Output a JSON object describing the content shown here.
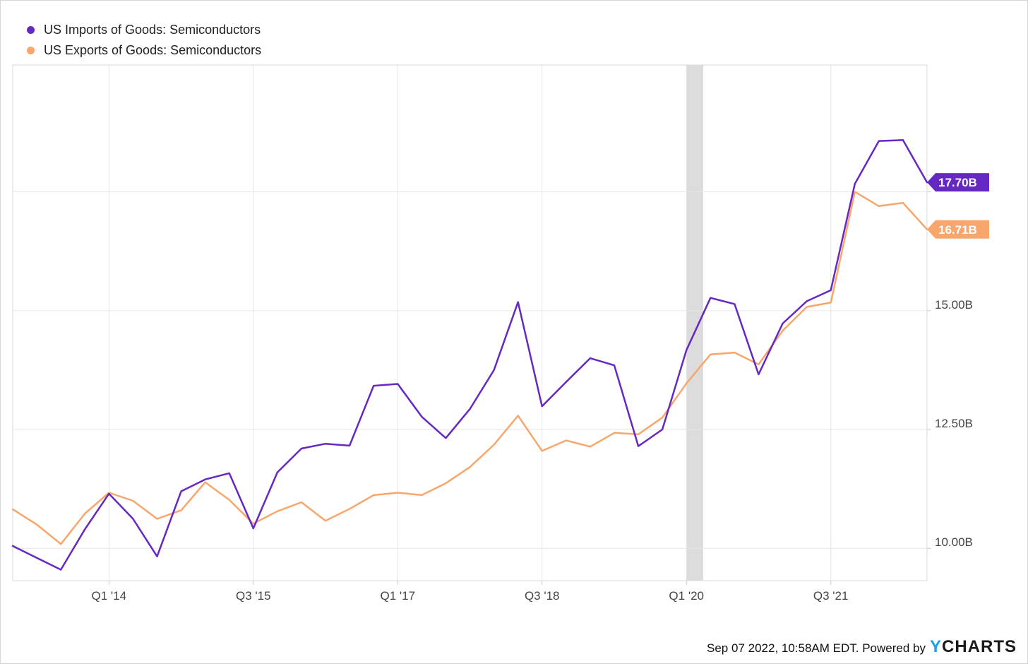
{
  "legend": {
    "items": [
      {
        "label": "US Imports of Goods: Semiconductors",
        "color": "#6528c2"
      },
      {
        "label": "US Exports of Goods: Semiconductors",
        "color": "#f8a66b"
      }
    ]
  },
  "footer": {
    "timestamp": "Sep 07 2022, 10:58AM EDT. Powered by",
    "brand_first": "Y",
    "brand_rest": "CHARTS"
  },
  "chart_data": {
    "type": "line",
    "x_tick_labels": [
      "Q1 '14",
      "Q3 '15",
      "Q1 '17",
      "Q3 '18",
      "Q1 '20",
      "Q3 '21"
    ],
    "x_tick_index": [
      4,
      10,
      16,
      22,
      28,
      34
    ],
    "y_tick_labels": [
      "10.00B",
      "12.50B",
      "15.00B"
    ],
    "y_tick_values": [
      10.0,
      12.5,
      15.0
    ],
    "y_gridline_values": [
      10.0,
      12.5,
      15.0,
      17.5
    ],
    "ylim": [
      9.32,
      20.17
    ],
    "x_count": 39,
    "recession_band_index": [
      28,
      28.7
    ],
    "grid": true,
    "legend_position": "top-left",
    "series": [
      {
        "name": "US Imports of Goods: Semiconductors",
        "color": "#6528c2",
        "end_label": "17.70B",
        "values": [
          10.05,
          9.8,
          9.55,
          10.4,
          11.15,
          10.62,
          9.83,
          11.2,
          11.45,
          11.58,
          10.42,
          11.6,
          12.1,
          12.2,
          12.16,
          13.42,
          13.46,
          12.77,
          12.32,
          12.93,
          13.75,
          15.18,
          12.99,
          13.5,
          14.0,
          13.85,
          12.15,
          12.5,
          14.17,
          15.27,
          15.14,
          13.66,
          14.73,
          15.2,
          15.43,
          17.67,
          18.57,
          18.59,
          17.7
        ]
      },
      {
        "name": "US Exports of Goods: Semiconductors",
        "color": "#f8a66b",
        "end_label": "16.71B",
        "values": [
          10.82,
          10.5,
          10.09,
          10.73,
          11.17,
          11.0,
          10.62,
          10.8,
          11.39,
          11.02,
          10.52,
          10.78,
          10.97,
          10.58,
          10.83,
          11.12,
          11.17,
          11.12,
          11.37,
          11.71,
          12.18,
          12.79,
          12.05,
          12.27,
          12.14,
          12.43,
          12.4,
          12.75,
          13.47,
          14.08,
          14.12,
          13.87,
          14.58,
          15.08,
          15.17,
          17.5,
          17.2,
          17.27,
          16.71
        ]
      }
    ]
  }
}
